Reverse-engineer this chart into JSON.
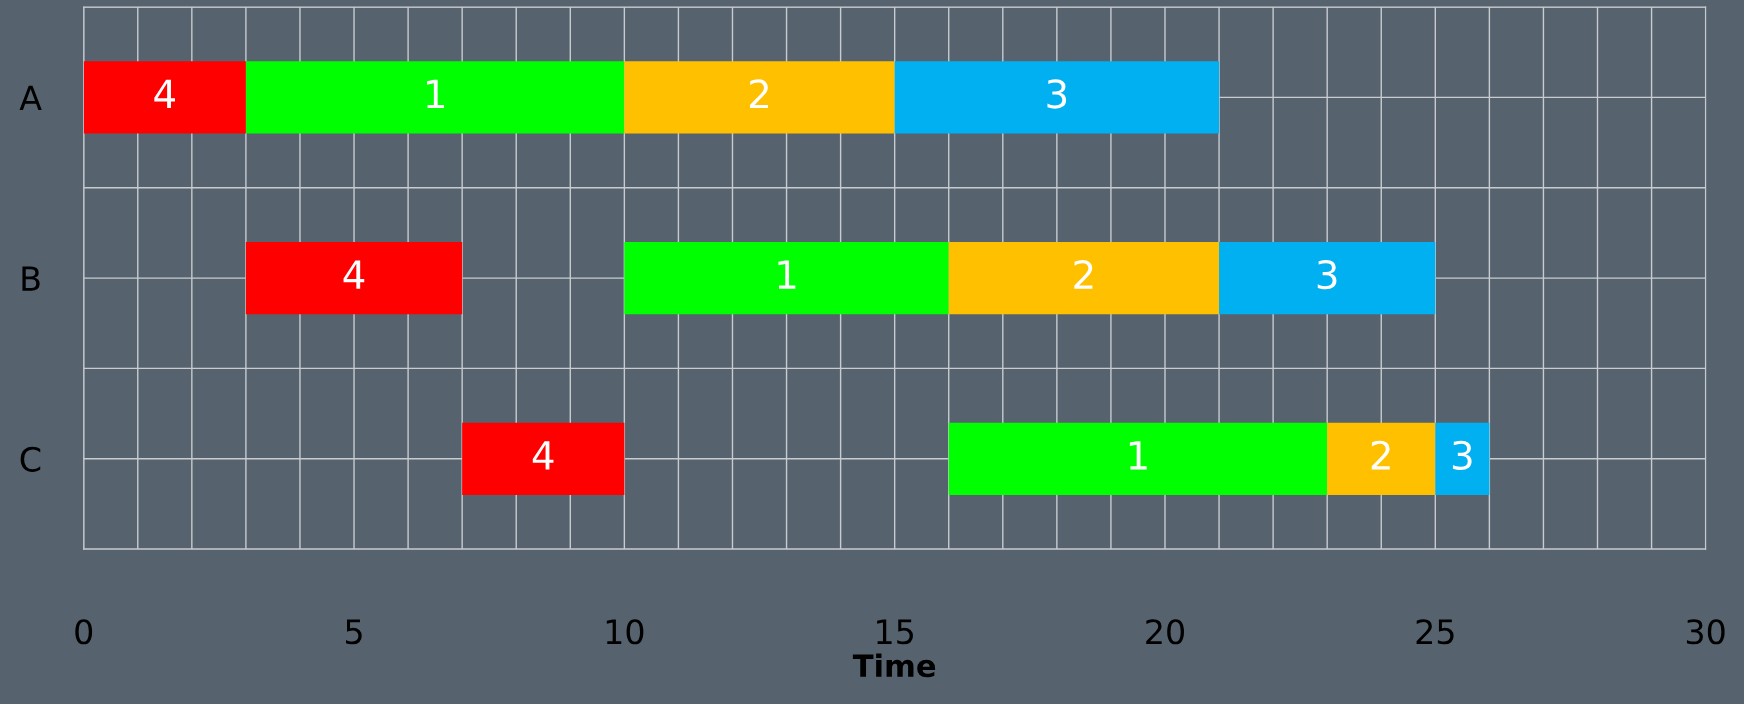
{
  "chart_data": {
    "type": "bar",
    "orientation": "horizontal",
    "xlabel": "Time",
    "categories": [
      "A",
      "B",
      "C"
    ],
    "series": [
      {
        "name": "4",
        "color": "#ff0000",
        "base": [
          0,
          3,
          7
        ],
        "values": [
          3,
          4,
          3
        ]
      },
      {
        "name": "1",
        "color": "#00ff00",
        "base": [
          3,
          10,
          16
        ],
        "values": [
          7,
          6,
          7
        ]
      },
      {
        "name": "2",
        "color": "#ffc000",
        "base": [
          10,
          16,
          23
        ],
        "values": [
          5,
          5,
          2
        ]
      },
      {
        "name": "3",
        "color": "#00b0f0",
        "base": [
          15,
          21,
          25
        ],
        "values": [
          6,
          4,
          1
        ]
      }
    ],
    "xlim": [
      0,
      30
    ],
    "xticks": [
      0,
      {
        "value": 1,
        "label": null
      },
      {
        "value": 2,
        "label": null
      },
      {
        "value": 3,
        "label": null
      },
      {
        "value": 4,
        "label": null
      },
      5,
      {
        "value": 6,
        "label": null
      },
      {
        "value": 7,
        "label": null
      },
      {
        "value": 8,
        "label": null
      },
      {
        "value": 9,
        "label": null
      },
      10,
      {
        "value": 11,
        "label": null
      },
      {
        "value": 12,
        "label": null
      },
      {
        "value": 13,
        "label": null
      },
      {
        "value": 14,
        "label": null
      },
      15,
      {
        "value": 16,
        "label": null
      },
      {
        "value": 17,
        "label": null
      },
      {
        "value": 18,
        "label": null
      },
      {
        "value": 19,
        "label": null
      },
      20,
      {
        "value": 21,
        "label": null
      },
      {
        "value": 22,
        "label": null
      },
      {
        "value": 23,
        "label": null
      },
      {
        "value": 24,
        "label": null
      },
      25,
      {
        "value": 26,
        "label": null
      },
      {
        "value": 27,
        "label": null
      },
      {
        "value": 28,
        "label": null
      },
      {
        "value": 29,
        "label": null
      },
      30
    ],
    "grid": true,
    "legend": false
  }
}
